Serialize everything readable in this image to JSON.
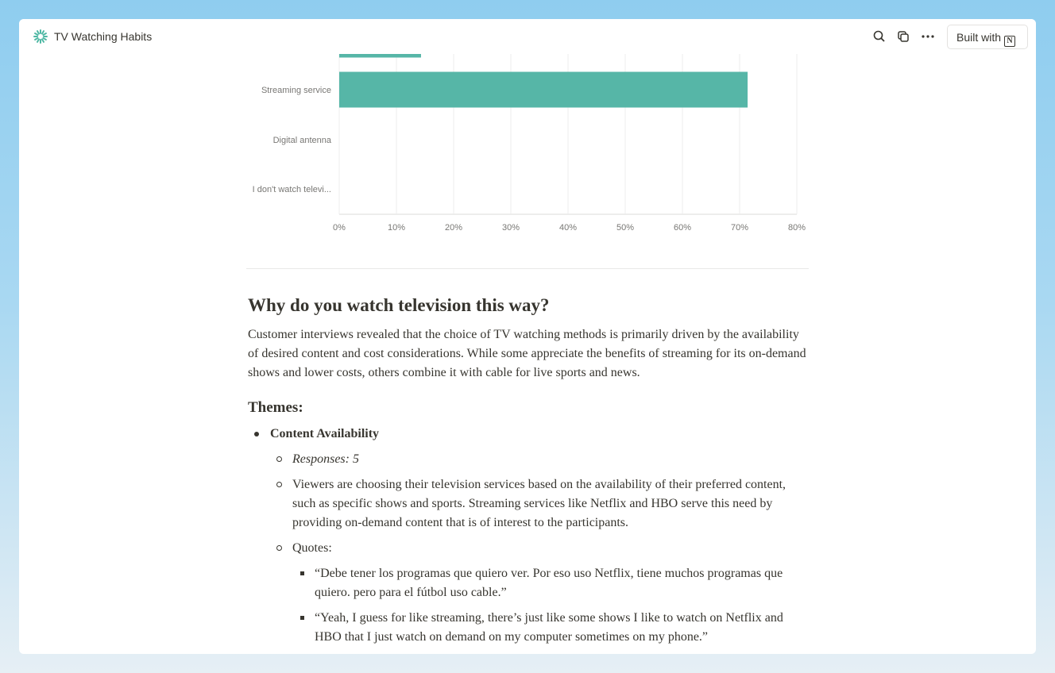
{
  "header": {
    "title": "TV Watching Habits",
    "built_with": "Built with",
    "actions": [
      "search-icon",
      "duplicate-icon",
      "more-icon"
    ]
  },
  "chart_data": {
    "type": "bar",
    "orientation": "horizontal",
    "categories": [
      "",
      "Streaming service",
      "Digital antenna",
      "I don't watch televi..."
    ],
    "values": [
      14.3,
      71.4,
      0,
      0
    ],
    "xlim": [
      0,
      80
    ],
    "xticks": [
      "0%",
      "10%",
      "20%",
      "30%",
      "40%",
      "50%",
      "60%",
      "70%",
      "80%"
    ],
    "grid": true,
    "color": "#56b6a7"
  },
  "content": {
    "heading": "Why do you watch television this way?",
    "paragraph": "Customer interviews revealed that the choice of TV watching methods is primarily driven by the availability of desired content and cost considerations. While some appreciate the benefits of streaming for its on-demand shows and lower costs, others combine it with cable for live sports and news.",
    "themes_heading": "Themes:",
    "theme1": {
      "title": "Content Availability",
      "responses": "Responses: 5",
      "description": "Viewers are choosing their television services based on the availability of their preferred content, such as specific shows and sports. Streaming services like Netflix and HBO serve this need by providing on-demand content that is of interest to the participants.",
      "quotes_label": "Quotes:",
      "quotes": [
        "“Debe tener los programas que quiero ver. Por eso uso Netflix, tiene muchos programas que quiero. pero para el fútbol uso cable.”",
        "“Yeah, I guess for like streaming, there’s just like some shows I like to watch on Netflix and HBO that I just watch on demand on my computer sometimes on my phone.”"
      ]
    }
  }
}
